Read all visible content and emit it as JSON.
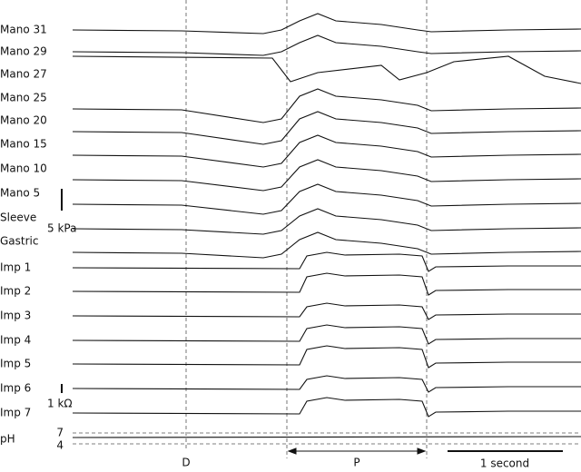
{
  "channels": [
    "Mano 31",
    "Mano 29",
    "Mano 27",
    "Mano 25",
    "Mano 20",
    "Mano 15",
    "Mano 10",
    "Mano 5",
    "Sleeve",
    "Gastric",
    "Imp 1",
    "Imp 2",
    "Imp 3",
    "Imp 4",
    "Imp 5",
    "Imp 6",
    "Imp 7",
    "pH"
  ],
  "scale_bars": {
    "pressure": "5 kPa",
    "impedance": "1 kΩ",
    "time": "1 second"
  },
  "ph_levels": [
    "7",
    "4"
  ],
  "markers": {
    "start": "D",
    "phase": "P"
  }
}
